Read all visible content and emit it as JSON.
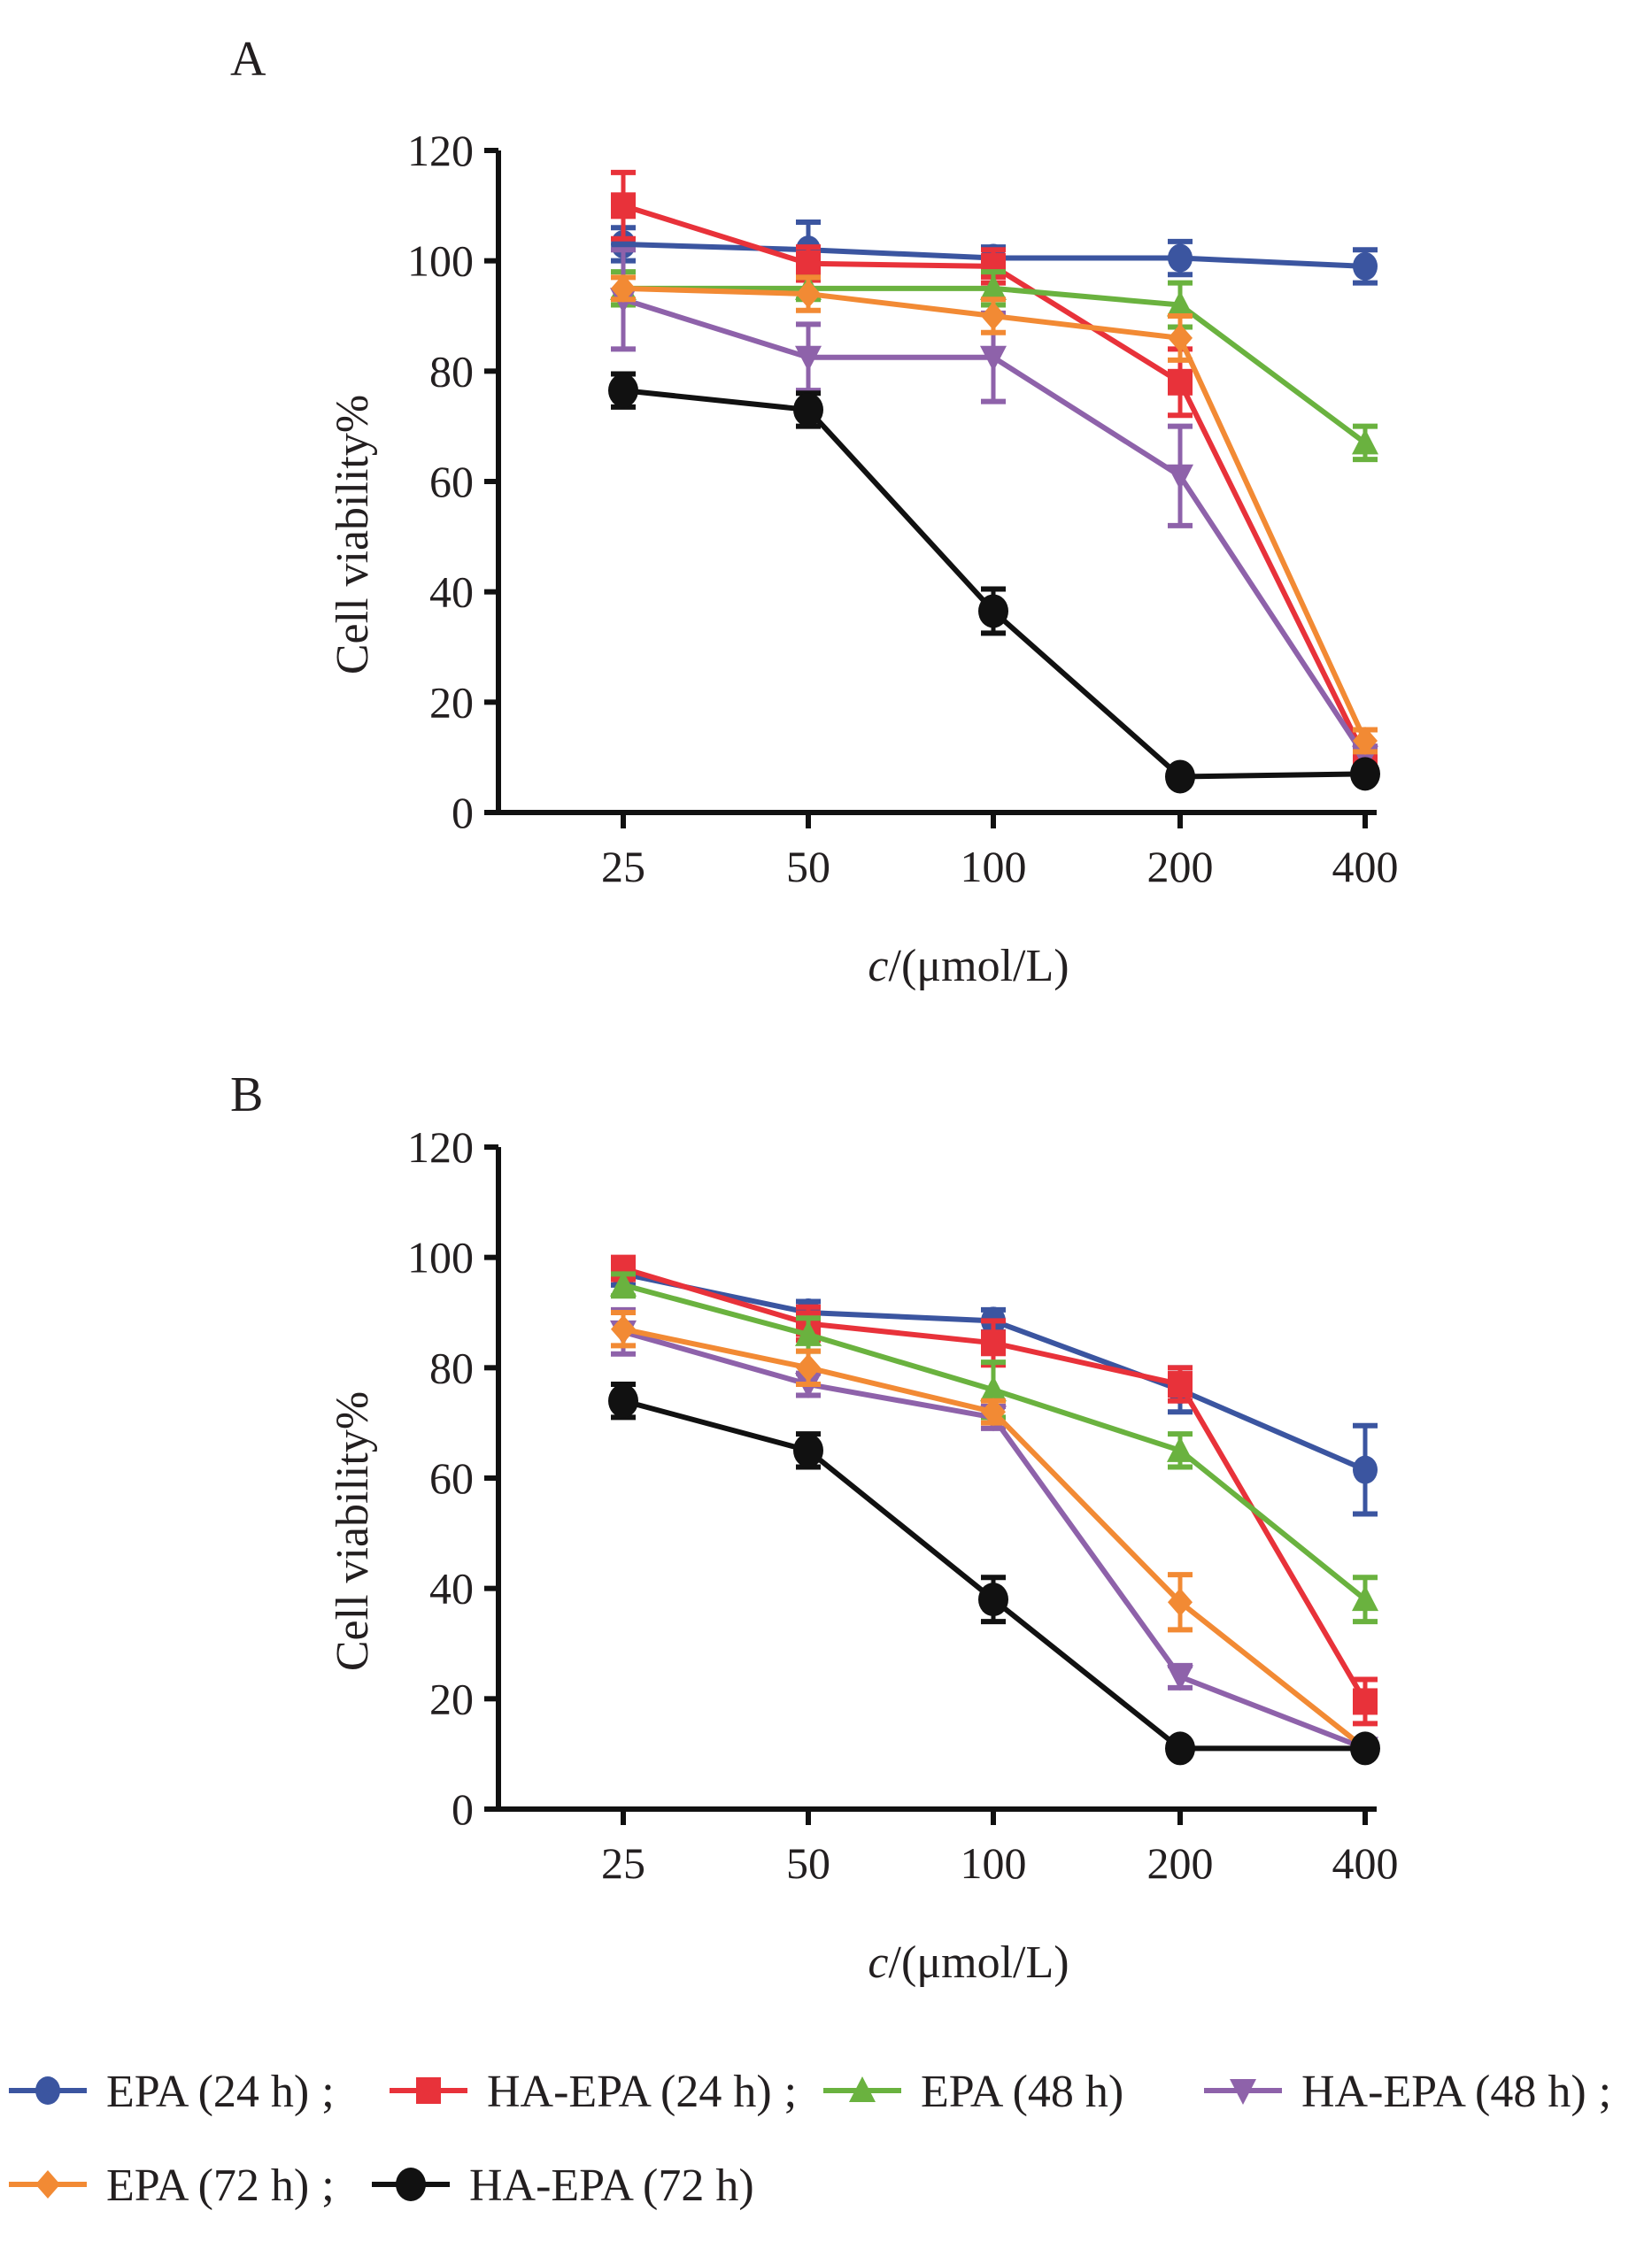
{
  "chart_data": [
    {
      "type": "line",
      "panel_label": "A",
      "xlabel_italic": "c",
      "xlabel_rest": "/(μmol/L)",
      "ylabel": "Cell viability%",
      "ylim": [
        0,
        120
      ],
      "yticks": [
        "0",
        "20",
        "40",
        "60",
        "80",
        "100",
        "120"
      ],
      "yticks_values": [
        0,
        20,
        40,
        60,
        80,
        100,
        120
      ],
      "categories": [
        "25",
        "50",
        "100",
        "200",
        "400"
      ],
      "series": [
        {
          "name": "EPA (24 h)",
          "values": [
            103,
            102,
            100.5,
            100.5,
            99
          ],
          "errors": [
            3,
            5,
            2,
            3,
            3
          ]
        },
        {
          "name": "HA-EPA (24 h)",
          "values": [
            110,
            99.5,
            99,
            78,
            10
          ],
          "errors": [
            6,
            3,
            3,
            6,
            2
          ]
        },
        {
          "name": "EPA (48 h)",
          "values": [
            95,
            95,
            95,
            92,
            67
          ],
          "errors": [
            3,
            2,
            3,
            4,
            3
          ]
        },
        {
          "name": "HA-EPA (48 h)",
          "values": [
            93,
            82.5,
            82.5,
            61,
            10
          ],
          "errors": [
            9,
            6,
            8,
            9,
            2
          ]
        },
        {
          "name": "EPA (72 h)",
          "values": [
            95,
            94,
            90,
            86,
            13
          ],
          "errors": [
            2,
            3,
            3,
            4,
            2
          ]
        },
        {
          "name": "HA-EPA (72 h)",
          "values": [
            76.5,
            73,
            36.5,
            6.5,
            7
          ],
          "errors": [
            3,
            3,
            4,
            1,
            1
          ]
        }
      ]
    },
    {
      "type": "line",
      "panel_label": "B",
      "xlabel_italic": "c",
      "xlabel_rest": "/(μmol/L)",
      "ylabel": "Cell viability%",
      "ylim": [
        0,
        120
      ],
      "yticks": [
        "0",
        "20",
        "40",
        "60",
        "80",
        "100",
        "120"
      ],
      "yticks_values": [
        0,
        20,
        40,
        60,
        80,
        100,
        120
      ],
      "categories": [
        "25",
        "50",
        "100",
        "200",
        "400"
      ],
      "series": [
        {
          "name": "EPA (24 h)",
          "values": [
            97,
            90,
            88.5,
            76,
            61.5
          ],
          "errors": [
            2,
            2,
            2,
            4,
            8
          ]
        },
        {
          "name": "HA-EPA (24 h)",
          "values": [
            98,
            88,
            84.5,
            77,
            19.5
          ],
          "errors": [
            2,
            3,
            4,
            3,
            4
          ]
        },
        {
          "name": "EPA (48 h)",
          "values": [
            95,
            86,
            76,
            65,
            38
          ],
          "errors": [
            2,
            3,
            5,
            3,
            4
          ]
        },
        {
          "name": "HA-EPA (48 h)",
          "values": [
            86.5,
            77,
            71,
            24,
            11
          ],
          "errors": [
            4,
            2,
            2,
            2,
            1
          ]
        },
        {
          "name": "EPA (72 h)",
          "values": [
            87,
            80,
            72,
            37.5,
            11
          ],
          "errors": [
            3,
            3,
            2,
            5,
            1
          ]
        },
        {
          "name": "HA-EPA (72 h)",
          "values": [
            74,
            65,
            38,
            11,
            11
          ],
          "errors": [
            3,
            3,
            4,
            1,
            1
          ]
        }
      ]
    }
  ],
  "legend": {
    "separator": ";",
    "placement": "bottom",
    "items": [
      {
        "label": "EPA (24 h)",
        "color": "#3b55a0",
        "marker": "circle",
        "sep": true
      },
      {
        "label": "HA-EPA (24 h)",
        "color": "#e8323a",
        "marker": "square",
        "sep": true
      },
      {
        "label": "EPA (48 h)",
        "color": "#6ab23f",
        "marker": "triangle-up",
        "sep": false
      },
      {
        "label": "HA-EPA (48 h)",
        "color": "#8e62aa",
        "marker": "triangle-down",
        "sep": true
      },
      {
        "label": "EPA (72 h)",
        "color": "#f28a34",
        "marker": "diamond",
        "sep": true
      },
      {
        "label": "HA-EPA (72 h)",
        "color": "#111111",
        "marker": "big-circle",
        "sep": false
      }
    ]
  }
}
